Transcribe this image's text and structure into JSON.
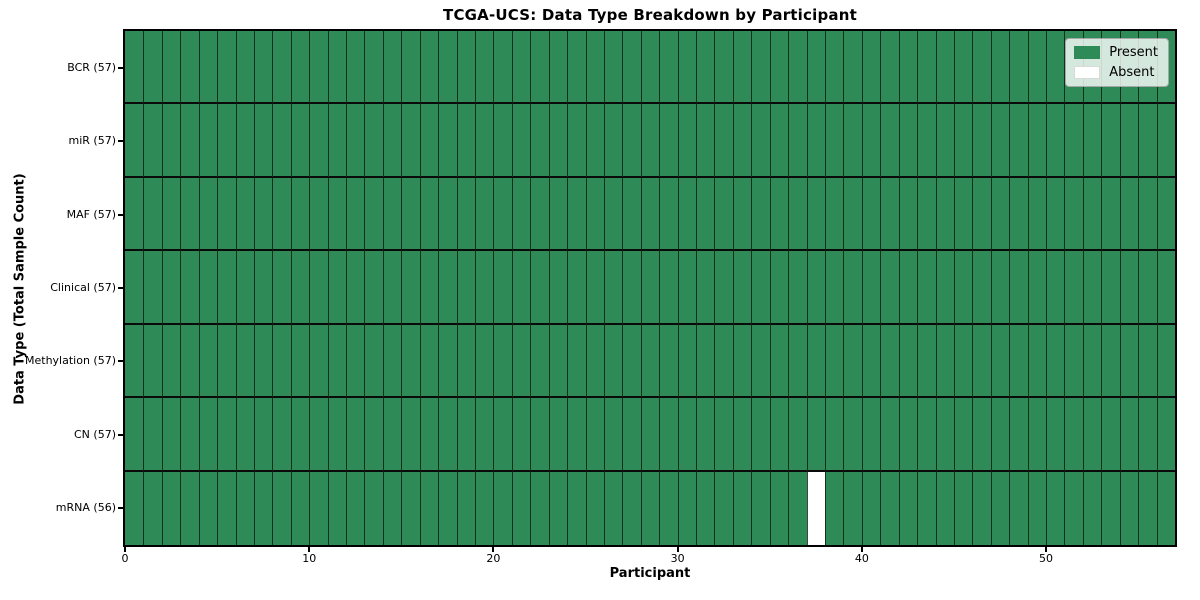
{
  "title": "TCGA-UCS: Data Type Breakdown by Participant",
  "chart_data": {
    "type": "heatmap",
    "title": "TCGA-UCS: Data Type Breakdown by Participant",
    "xlabel": "Participant",
    "ylabel": "Data Type (Total Sample Count)",
    "n_participants": 57,
    "x_range": [
      0,
      57
    ],
    "xticks": [
      0,
      10,
      20,
      30,
      40,
      50
    ],
    "rows": [
      {
        "label": "BCR (57)",
        "data_type": "BCR",
        "present_count": 57,
        "absent_participants": []
      },
      {
        "label": "miR (57)",
        "data_type": "miR",
        "present_count": 57,
        "absent_participants": []
      },
      {
        "label": "MAF (57)",
        "data_type": "MAF",
        "present_count": 57,
        "absent_participants": []
      },
      {
        "label": "Clinical (57)",
        "data_type": "Clinical",
        "present_count": 57,
        "absent_participants": []
      },
      {
        "label": "Methylation (57)",
        "data_type": "Methylation",
        "present_count": 57,
        "absent_participants": []
      },
      {
        "label": "CN (57)",
        "data_type": "CN",
        "present_count": 57,
        "absent_participants": []
      },
      {
        "label": "mRNA (56)",
        "data_type": "mRNA",
        "present_count": 56,
        "absent_participants": [
          37
        ]
      }
    ],
    "legend": {
      "position": "upper right",
      "entries": [
        {
          "label": "Present",
          "color": "#2e8b57"
        },
        {
          "label": "Absent",
          "color": "#ffffff"
        }
      ]
    },
    "colors": {
      "present": "#2e8b57",
      "absent": "#ffffff",
      "cell_edge": "#0a190f",
      "spine": "#000000"
    },
    "grid": "cell-borders-on"
  }
}
